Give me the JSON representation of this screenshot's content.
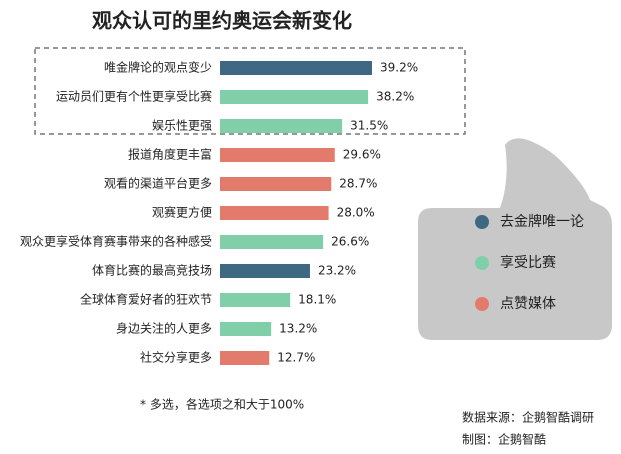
{
  "chart_data": {
    "type": "bar",
    "orientation": "horizontal",
    "title": "观众认可的里约奥运会新变化",
    "categories": [
      "唯金牌论的观点变少",
      "运动员们更有个性更享受比赛",
      "娱乐性更强",
      "报道角度更丰富",
      "观看的渠道平台更多",
      "观赛更方便",
      "观众更享受体育赛事带来的各种感受",
      "体育比赛的最高竞技场",
      "全球体育爱好者的狂欢节",
      "身边关注的人更多",
      "社交分享更多"
    ],
    "series": [
      {
        "name": "去金牌唯一论",
        "color": "#3f6983",
        "values": [
          39.2,
          null,
          null,
          null,
          null,
          null,
          null,
          23.2,
          null,
          null,
          null
        ],
        "value_labels": [
          "39.2%",
          null,
          null,
          null,
          null,
          null,
          null,
          "23.2%",
          null,
          null,
          null
        ]
      },
      {
        "name": "享受比赛",
        "color": "#80cfa9",
        "values": [
          null,
          38.2,
          31.5,
          null,
          null,
          null,
          26.6,
          null,
          18.1,
          13.2,
          null
        ],
        "value_labels": [
          null,
          "38.2%",
          "31.5%",
          null,
          null,
          null,
          "26.6%",
          null,
          "18.1%",
          "13.2%",
          null
        ]
      },
      {
        "name": "点赞媒体",
        "color": "#e27b6c",
        "values": [
          null,
          null,
          null,
          29.6,
          28.7,
          28.0,
          null,
          null,
          null,
          null,
          12.7
        ],
        "value_labels": [
          null,
          null,
          null,
          "29.6%",
          "28.7%",
          "28.0%",
          null,
          null,
          null,
          null,
          "12.7%"
        ]
      }
    ],
    "note": "*   多选，各选项之和大于100%",
    "source": "数据来源：企鹅智酷调研",
    "credit": "制图：企鹅智酷"
  }
}
